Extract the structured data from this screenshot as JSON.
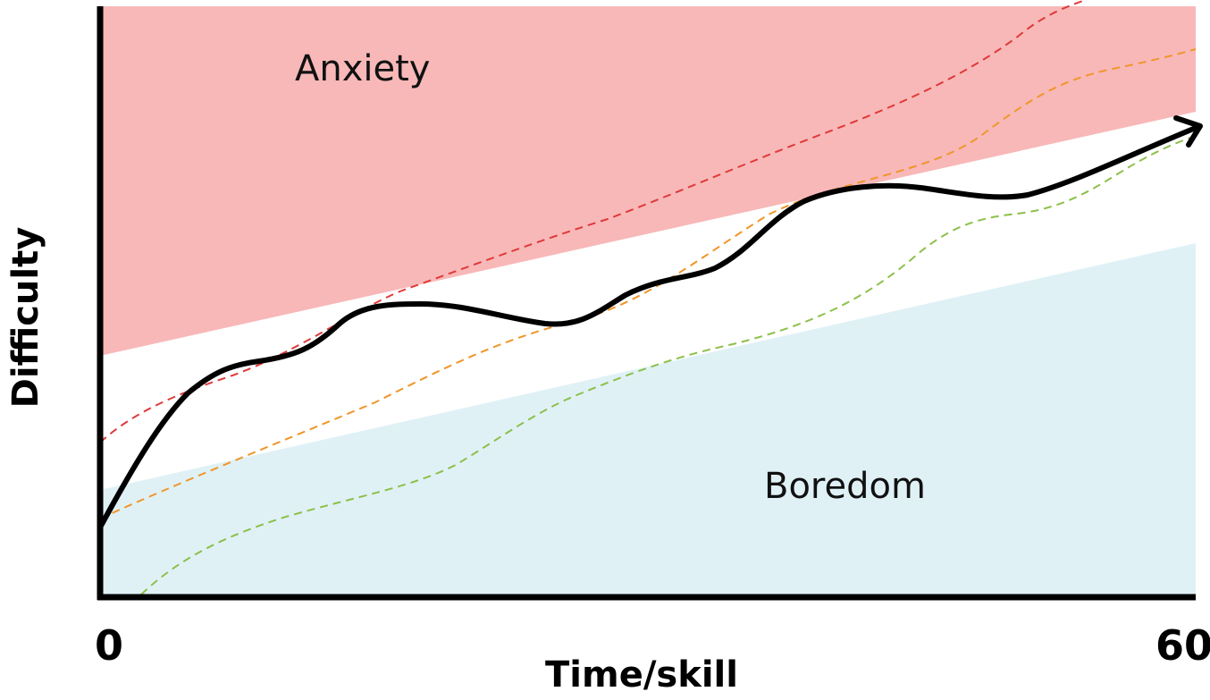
{
  "diagram": {
    "zones": {
      "anxiety": {
        "label": "Anxiety",
        "color": "#f8b8b8"
      },
      "boredom": {
        "label": "Boredom",
        "color": "#e0f1f6"
      }
    },
    "axes": {
      "x_title": "Time/skill",
      "y_title": "Difficulty",
      "x_start_label": "0",
      "x_end_label": "60"
    },
    "paths": [
      {
        "name": "main-flow-path",
        "color": "#000000",
        "style": "solid"
      },
      {
        "name": "red-dashed-path",
        "color": "#e03a3a",
        "style": "dashed"
      },
      {
        "name": "orange-dashed-path",
        "color": "#f0962a",
        "style": "dashed"
      },
      {
        "name": "green-dashed-path",
        "color": "#8cc04a",
        "style": "dashed"
      }
    ]
  }
}
